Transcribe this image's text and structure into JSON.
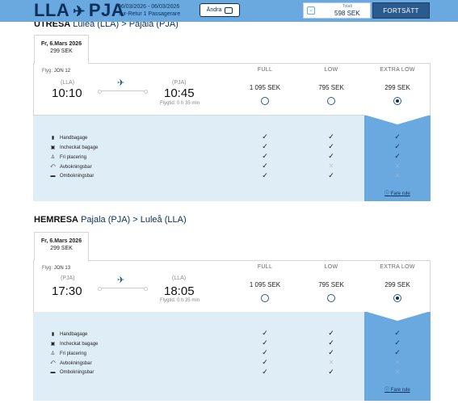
{
  "header": {
    "from": "LLA",
    "to": "PJA",
    "dates": "06/03/2026 - 06/03/2026",
    "trip_info": "Tur-Retur 1 Passagerare",
    "change_label": "Ändra",
    "total_label": "Totalt",
    "total_value": "598 SEK",
    "continue_label": "FORTSÄTT"
  },
  "outbound": {
    "title_bold": "UTRESA",
    "title_route": "Luleå (LLA) > Pajala (PJA)",
    "tab_date": "Fr, 6.Mars 2026",
    "tab_price": "299 SEK",
    "flight_label": "Flyg:",
    "flight_no": "JON 12",
    "dep_code": "(LLA)",
    "dep_time": "10:10",
    "arr_code": "(PJA)",
    "arr_time": "10:45",
    "duration": "Flygtid: 0 h 35 min"
  },
  "inbound": {
    "title_bold": "HEMRESA",
    "title_route": "Pajala (PJA) > Luleå (LLA)",
    "tab_date": "Fr, 6.Mars 2026",
    "tab_price": "299 SEK",
    "flight_label": "Flyg:",
    "flight_no": "JON 13",
    "dep_code": "(PJA)",
    "dep_time": "17:30",
    "arr_code": "(LLA)",
    "arr_time": "18:05",
    "duration": "Flygtid: 0 h 35 min"
  },
  "fares": [
    {
      "name": "FULL",
      "price": "1 095 SEK"
    },
    {
      "name": "LOW",
      "price": "795 SEK"
    },
    {
      "name": "EXTRA LOW",
      "price": "299 SEK"
    }
  ],
  "selected_fare": "EXTRA LOW",
  "features": [
    {
      "label": "Handbagage",
      "icon": "suitcase-icon",
      "full": true,
      "low": true,
      "extra_low": true
    },
    {
      "label": "Incheckat bagage",
      "icon": "checked-bag-icon",
      "full": true,
      "low": true,
      "extra_low": true
    },
    {
      "label": "Fri placering",
      "icon": "seat-icon",
      "full": true,
      "low": true,
      "extra_low": true
    },
    {
      "label": "Avbokningsbar",
      "icon": "cancel-icon",
      "full": true,
      "low": false,
      "extra_low": false
    },
    {
      "label": "Ombokningsbar",
      "icon": "rebook-icon",
      "full": true,
      "low": true,
      "extra_low": false
    }
  ],
  "fare_rule_label": "Fare rule",
  "colors": {
    "accent": "#6aa9df",
    "dark": "#0b2f5c",
    "panel": "#dfedf7"
  }
}
